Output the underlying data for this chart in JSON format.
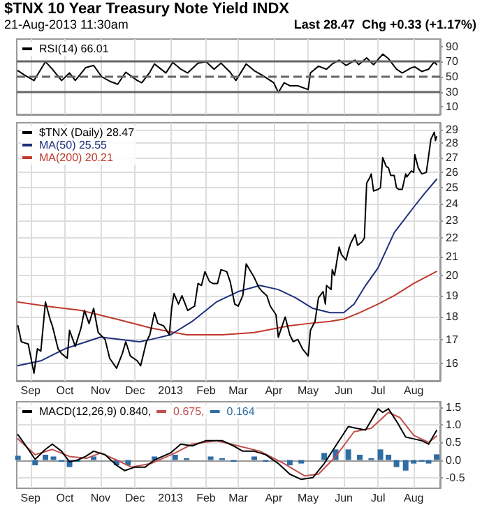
{
  "chart_data": [
    {
      "type": "line",
      "title": "$TNX 10 Year Treasury Note Yield INDX",
      "subtitle": "21-Aug-2013 11:30am",
      "annotations": [
        "Last 28.47  Chg +0.33 (+1.17%)"
      ],
      "legend": "top left",
      "grid": "x",
      "marker": "none",
      "tick_labels": "y",
      "xlim": [
        "2012-08-20",
        "2013-08-24"
      ],
      "ylim": [
        0,
        100
      ],
      "yticks": [
        10,
        30,
        50,
        70,
        90
      ],
      "xticks": [
        {
          "value": "2012-09-01",
          "label": null
        },
        {
          "value": "2012-10-01",
          "label": null
        },
        {
          "value": "2012-11-01",
          "label": null
        },
        {
          "value": "2012-12-01",
          "label": null
        },
        {
          "value": "2013-01-01",
          "label": null
        },
        {
          "value": "2013-02-01",
          "label": null
        },
        {
          "value": "2013-03-01",
          "label": null
        },
        {
          "value": "2013-04-01",
          "label": null
        },
        {
          "value": "2013-05-01",
          "label": null
        },
        {
          "value": "2013-06-01",
          "label": null
        },
        {
          "value": "2013-07-01",
          "label": null
        },
        {
          "value": "2013-08-01",
          "label": null
        }
      ],
      "ref_lines": [
        {
          "axis": "y",
          "value": 70,
          "color": "#666666",
          "line_style": "solid"
        },
        {
          "axis": "y",
          "value": 50,
          "color": "#666666",
          "line_style": "dashed"
        },
        {
          "axis": "y",
          "value": 30,
          "color": "#666666",
          "line_style": "solid"
        }
      ],
      "series": [
        {
          "name": "RSI(14) 66.01",
          "color": "#000000",
          "x": [
            "2012-08-21",
            "2012-08-27",
            "2012-09-04",
            "2012-09-14",
            "2012-09-20",
            "2012-09-28",
            "2012-10-05",
            "2012-10-10",
            "2012-10-19",
            "2012-10-26",
            "2012-11-02",
            "2012-11-09",
            "2012-11-16",
            "2012-11-23",
            "2012-12-03",
            "2012-12-07",
            "2012-12-14",
            "2012-12-18",
            "2012-12-28",
            "2013-01-03",
            "2013-01-10",
            "2013-01-16",
            "2013-01-25",
            "2013-02-01",
            "2013-02-08",
            "2013-02-14",
            "2013-02-22",
            "2013-02-27",
            "2013-03-08",
            "2013-03-15",
            "2013-03-22",
            "2013-04-01",
            "2013-04-05",
            "2013-04-10",
            "2013-04-15",
            "2013-04-22",
            "2013-05-01",
            "2013-05-03",
            "2013-05-10",
            "2013-05-17",
            "2013-05-22",
            "2013-05-28",
            "2013-06-03",
            "2013-06-11",
            "2013-06-14",
            "2013-06-21",
            "2013-06-27",
            "2013-07-05",
            "2013-07-10",
            "2013-07-17",
            "2013-07-22",
            "2013-07-30",
            "2013-08-02",
            "2013-08-08",
            "2013-08-14",
            "2013-08-19",
            "2013-08-21"
          ],
          "values": [
            58,
            52,
            45,
            70,
            60,
            45,
            55,
            45,
            62,
            65,
            50,
            44,
            40,
            56,
            45,
            42,
            56,
            67,
            55,
            69,
            60,
            55,
            68,
            70,
            60,
            68,
            56,
            45,
            67,
            58,
            52,
            42,
            29,
            42,
            38,
            38,
            33,
            55,
            64,
            60,
            67,
            72,
            65,
            72,
            66,
            75,
            66,
            80,
            74,
            60,
            55,
            62,
            63,
            57,
            60,
            70,
            66
          ]
        }
      ]
    },
    {
      "type": "line",
      "legend": "top left",
      "grid": true,
      "marker": "none",
      "log": true,
      "xlim": [
        "2012-08-20",
        "2013-08-24"
      ],
      "ylim": [
        15.3,
        29.5
      ],
      "yticks": [
        16,
        17,
        18,
        19,
        20,
        21,
        22,
        23,
        24,
        25,
        26,
        27,
        28,
        29
      ],
      "xticks": [
        {
          "value": "2012-09-01",
          "label": "Sep"
        },
        {
          "value": "2012-10-01",
          "label": "Oct"
        },
        {
          "value": "2012-11-01",
          "label": "Nov"
        },
        {
          "value": "2012-12-01",
          "label": "Dec"
        },
        {
          "value": "2013-01-01",
          "label": "2013"
        },
        {
          "value": "2013-02-01",
          "label": "Feb"
        },
        {
          "value": "2013-03-01",
          "label": "Mar"
        },
        {
          "value": "2013-04-01",
          "label": "Apr"
        },
        {
          "value": "2013-05-01",
          "label": "May"
        },
        {
          "value": "2013-06-01",
          "label": "Jun"
        },
        {
          "value": "2013-07-01",
          "label": "Jul"
        },
        {
          "value": "2013-08-01",
          "label": "Aug"
        }
      ],
      "series": [
        {
          "name": "MA(200) 20.21",
          "color": "#c0392b",
          "x": [
            "2012-08-21",
            "2012-09-15",
            "2012-10-15",
            "2012-11-15",
            "2012-12-15",
            "2013-01-15",
            "2013-02-15",
            "2013-03-15",
            "2013-04-15",
            "2013-05-01",
            "2013-05-20",
            "2013-06-01",
            "2013-06-15",
            "2013-07-01",
            "2013-07-15",
            "2013-08-01",
            "2013-08-21"
          ],
          "values": [
            18.7,
            18.5,
            18.3,
            17.9,
            17.5,
            17.2,
            17.2,
            17.3,
            17.6,
            17.7,
            17.8,
            17.9,
            18.2,
            18.6,
            19.0,
            19.6,
            20.21
          ]
        },
        {
          "name": "MA(50) 25.55",
          "color": "#1f2f7a",
          "x": [
            "2012-08-21",
            "2012-09-10",
            "2012-10-01",
            "2012-11-01",
            "2012-12-05",
            "2012-12-15",
            "2013-01-01",
            "2013-01-20",
            "2013-02-10",
            "2013-03-01",
            "2013-03-20",
            "2013-04-05",
            "2013-04-20",
            "2013-05-05",
            "2013-05-20",
            "2013-06-01",
            "2013-06-10",
            "2013-06-20",
            "2013-07-01",
            "2013-07-15",
            "2013-08-01",
            "2013-08-10",
            "2013-08-21"
          ],
          "values": [
            15.9,
            16.1,
            16.6,
            17.1,
            16.9,
            17.0,
            17.2,
            17.8,
            18.7,
            19.2,
            19.5,
            19.3,
            18.9,
            18.4,
            18.2,
            18.2,
            18.6,
            19.5,
            20.4,
            22.3,
            23.8,
            24.6,
            25.55
          ]
        },
        {
          "name": "$TNX (Daily) 28.47",
          "color": "#000000",
          "x": [
            "2012-08-21",
            "2012-08-24",
            "2012-08-30",
            "2012-09-04",
            "2012-09-07",
            "2012-09-10",
            "2012-09-14",
            "2012-09-18",
            "2012-09-20",
            "2012-09-25",
            "2012-09-28",
            "2012-10-03",
            "2012-10-05",
            "2012-10-10",
            "2012-10-15",
            "2012-10-18",
            "2012-10-22",
            "2012-10-26",
            "2012-10-30",
            "2012-11-05",
            "2012-11-09",
            "2012-11-15",
            "2012-11-20",
            "2012-11-23",
            "2012-11-27",
            "2012-12-03",
            "2012-12-06",
            "2012-12-11",
            "2012-12-14",
            "2012-12-18",
            "2012-12-21",
            "2012-12-26",
            "2012-12-31",
            "2013-01-02",
            "2013-01-04",
            "2013-01-08",
            "2013-01-11",
            "2013-01-16",
            "2013-01-22",
            "2013-01-25",
            "2013-01-28",
            "2013-01-31",
            "2013-02-04",
            "2013-02-07",
            "2013-02-11",
            "2013-02-14",
            "2013-02-19",
            "2013-02-22",
            "2013-02-26",
            "2013-03-01",
            "2013-03-05",
            "2013-03-08",
            "2013-03-12",
            "2013-03-15",
            "2013-03-19",
            "2013-03-22",
            "2013-03-26",
            "2013-03-29",
            "2013-04-03",
            "2013-04-05",
            "2013-04-09",
            "2013-04-11",
            "2013-04-15",
            "2013-04-18",
            "2013-04-22",
            "2013-04-26",
            "2013-05-01",
            "2013-05-03",
            "2013-05-07",
            "2013-05-10",
            "2013-05-14",
            "2013-05-16",
            "2013-05-17",
            "2013-05-21",
            "2013-05-22",
            "2013-05-24",
            "2013-05-28",
            "2013-05-30",
            "2013-06-03",
            "2013-06-05",
            "2013-06-07",
            "2013-06-11",
            "2013-06-13",
            "2013-06-17",
            "2013-06-19",
            "2013-06-20",
            "2013-06-21",
            "2013-06-24",
            "2013-06-25",
            "2013-06-27",
            "2013-07-01",
            "2013-07-03",
            "2013-07-05",
            "2013-07-08",
            "2013-07-10",
            "2013-07-12",
            "2013-07-15",
            "2013-07-17",
            "2013-07-19",
            "2013-07-22",
            "2013-07-25",
            "2013-07-26",
            "2013-07-30",
            "2013-08-01",
            "2013-08-02",
            "2013-08-05",
            "2013-08-08",
            "2013-08-12",
            "2013-08-14",
            "2013-08-16",
            "2013-08-19",
            "2013-08-20",
            "2013-08-21"
          ],
          "values": [
            17.6,
            16.9,
            16.8,
            15.6,
            16.6,
            16.5,
            18.7,
            17.9,
            17.6,
            16.6,
            16.4,
            16.2,
            17.4,
            16.7,
            17.5,
            18.3,
            17.7,
            18.4,
            17.3,
            17.0,
            16.2,
            15.8,
            16.4,
            16.9,
            16.3,
            16.1,
            15.9,
            16.9,
            17.2,
            18.2,
            17.7,
            17.6,
            17.2,
            18.4,
            19.1,
            18.6,
            19.0,
            18.3,
            18.5,
            19.6,
            19.5,
            20.2,
            19.7,
            19.6,
            19.6,
            20.3,
            20.2,
            19.7,
            18.6,
            18.5,
            19.0,
            20.6,
            20.2,
            19.9,
            19.4,
            19.2,
            19.0,
            18.5,
            18.1,
            17.1,
            17.7,
            18.0,
            17.2,
            16.9,
            17.0,
            16.6,
            16.3,
            17.4,
            17.8,
            18.9,
            19.2,
            18.6,
            19.5,
            19.3,
            20.3,
            20.0,
            21.5,
            21.1,
            20.8,
            21.3,
            21.7,
            22.2,
            21.6,
            21.8,
            22.0,
            23.6,
            25.3,
            25.7,
            25.9,
            24.8,
            24.9,
            25.0,
            27.0,
            26.4,
            26.3,
            25.8,
            25.8,
            25.0,
            24.9,
            24.9,
            25.9,
            25.7,
            26.1,
            26.0,
            27.2,
            26.3,
            25.9,
            26.0,
            27.1,
            28.3,
            28.8,
            28.2,
            28.47
          ]
        }
      ]
    },
    {
      "type": "line",
      "legend": "top left",
      "grid": true,
      "marker": "none",
      "xlim": [
        "2012-08-20",
        "2013-08-24"
      ],
      "ylim": [
        -0.8,
        1.65
      ],
      "yticks": [
        {
          "value": -0.5,
          "label": "-0.5"
        },
        {
          "value": 0,
          "label": "0.0"
        },
        {
          "value": 0.5,
          "label": "0.5"
        },
        {
          "value": 1,
          "label": "1.0"
        },
        {
          "value": 1.5,
          "label": "1.5"
        }
      ],
      "xticks": [
        {
          "value": "2012-09-01",
          "label": "Sep"
        },
        {
          "value": "2012-10-01",
          "label": "Oct"
        },
        {
          "value": "2012-11-01",
          "label": "Nov"
        },
        {
          "value": "2012-12-01",
          "label": "Dec"
        },
        {
          "value": "2013-01-01",
          "label": "2013"
        },
        {
          "value": "2013-02-01",
          "label": "Feb"
        },
        {
          "value": "2013-03-01",
          "label": "Mar"
        },
        {
          "value": "2013-04-01",
          "label": "Apr"
        },
        {
          "value": "2013-05-01",
          "label": "May"
        },
        {
          "value": "2013-06-01",
          "label": "Jun"
        },
        {
          "value": "2013-07-01",
          "label": "Jul"
        },
        {
          "value": "2013-08-01",
          "label": "Aug"
        }
      ],
      "series": [
        {
          "name": "0.164",
          "type": "bar",
          "color": "#2e6da4",
          "x": [
            "2012-08-21",
            "2012-08-28",
            "2012-09-05",
            "2012-09-14",
            "2012-09-21",
            "2012-09-28",
            "2012-10-05",
            "2012-10-12",
            "2012-10-19",
            "2012-10-26",
            "2012-11-05",
            "2012-11-15",
            "2012-11-25",
            "2012-12-05",
            "2012-12-18",
            "2013-01-05",
            "2013-01-15",
            "2013-01-25",
            "2013-02-05",
            "2013-02-15",
            "2013-02-25",
            "2013-03-08",
            "2013-03-15",
            "2013-03-25",
            "2013-04-05",
            "2013-04-15",
            "2013-04-25",
            "2013-05-05",
            "2013-05-15",
            "2013-05-25",
            "2013-06-05",
            "2013-06-15",
            "2013-06-25",
            "2013-07-03",
            "2013-07-10",
            "2013-07-17",
            "2013-07-25",
            "2013-08-01",
            "2013-08-08",
            "2013-08-14",
            "2013-08-21"
          ],
          "values": [
            0.12,
            0.0,
            -0.15,
            0.15,
            0.1,
            -0.05,
            -0.2,
            -0.05,
            0.0,
            0.1,
            0.0,
            -0.15,
            -0.15,
            0.0,
            0.1,
            0.15,
            0.05,
            0.0,
            0.1,
            0.05,
            -0.05,
            0.0,
            0.1,
            -0.05,
            null,
            -0.15,
            -0.1,
            0.0,
            0.2,
            0.3,
            0.3,
            0.15,
            0.05,
            0.3,
            0.15,
            -0.2,
            -0.3,
            -0.1,
            -0.05,
            -0.1,
            0.16
          ]
        },
        {
          "name": "0.675,",
          "color": "#c0504d",
          "x": [
            "2012-08-21",
            "2012-09-05",
            "2012-09-20",
            "2012-10-05",
            "2012-10-20",
            "2012-11-01",
            "2012-11-15",
            "2012-11-28",
            "2012-12-15",
            "2013-01-05",
            "2013-01-20",
            "2013-02-10",
            "2013-03-01",
            "2013-03-20",
            "2013-04-10",
            "2013-04-28",
            "2013-05-10",
            "2013-05-25",
            "2013-06-10",
            "2013-06-25",
            "2013-07-10",
            "2013-07-20",
            "2013-08-01",
            "2013-08-14",
            "2013-08-21"
          ],
          "values": [
            0.6,
            0.15,
            0.3,
            0.1,
            0.05,
            0.2,
            0.0,
            -0.2,
            -0.1,
            0.2,
            0.45,
            0.55,
            0.4,
            0.25,
            -0.1,
            -0.45,
            -0.4,
            0.1,
            0.8,
            0.9,
            1.35,
            1.2,
            0.7,
            0.5,
            0.68
          ]
        },
        {
          "name": "MACD(12,26,9) 0.840,",
          "color": "#000000",
          "x": [
            "2012-08-21",
            "2012-08-28",
            "2012-09-05",
            "2012-09-14",
            "2012-09-20",
            "2012-09-28",
            "2012-10-05",
            "2012-10-12",
            "2012-10-19",
            "2012-10-26",
            "2012-11-05",
            "2012-11-15",
            "2012-11-22",
            "2012-12-01",
            "2012-12-10",
            "2012-12-18",
            "2013-01-01",
            "2013-01-10",
            "2013-01-20",
            "2013-02-01",
            "2013-02-15",
            "2013-02-25",
            "2013-03-05",
            "2013-03-15",
            "2013-03-25",
            "2013-04-05",
            "2013-04-15",
            "2013-04-25",
            "2013-05-05",
            "2013-05-15",
            "2013-05-25",
            "2013-06-05",
            "2013-06-12",
            "2013-06-20",
            "2013-07-01",
            "2013-07-05",
            "2013-07-10",
            "2013-07-17",
            "2013-07-25",
            "2013-08-01",
            "2013-08-08",
            "2013-08-14",
            "2013-08-21"
          ],
          "values": [
            0.72,
            0.4,
            0.02,
            0.3,
            0.45,
            0.25,
            -0.05,
            0.0,
            0.1,
            0.25,
            0.15,
            -0.15,
            -0.3,
            -0.2,
            -0.2,
            0.0,
            0.2,
            0.45,
            0.4,
            0.55,
            0.55,
            0.4,
            0.25,
            0.25,
            0.15,
            -0.1,
            -0.4,
            -0.55,
            -0.5,
            -0.1,
            0.4,
            0.95,
            0.9,
            0.85,
            1.45,
            1.35,
            1.45,
            1.1,
            0.65,
            0.6,
            0.55,
            0.45,
            0.84
          ]
        }
      ]
    }
  ]
}
